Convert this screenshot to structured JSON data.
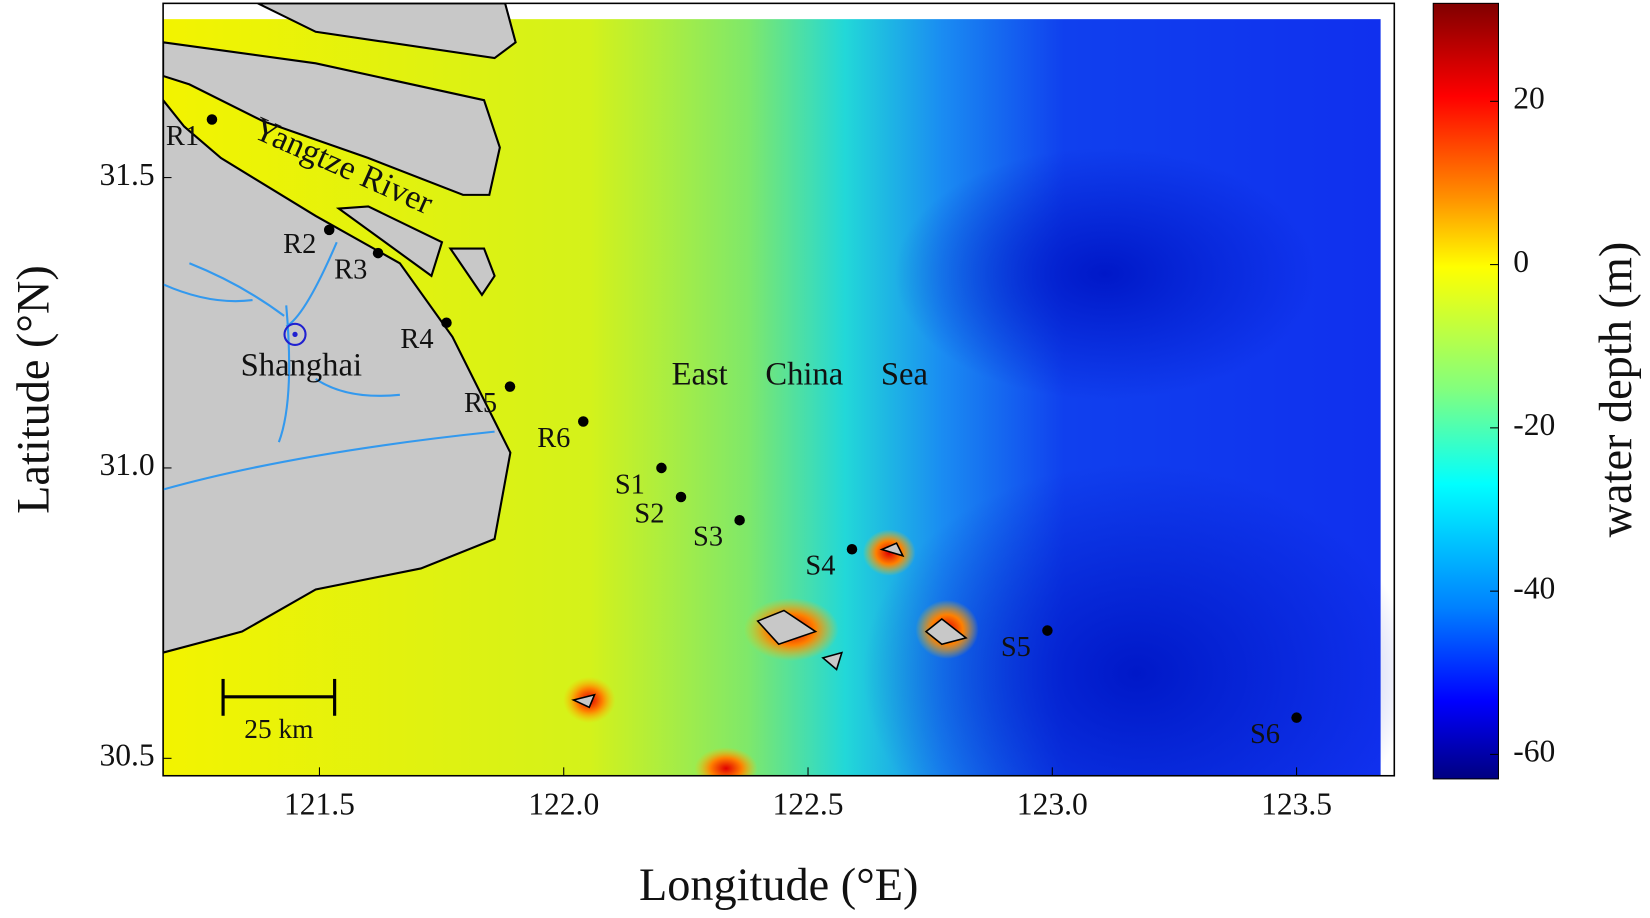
{
  "chart_data": {
    "type": "scatter",
    "xlabel": "Longitude (°E)",
    "ylabel": "Latitude (°N)",
    "xlim": [
      121.18,
      123.7
    ],
    "ylim": [
      30.47,
      31.8
    ],
    "xticks": [
      {
        "value": 121.5,
        "label": "121.5"
      },
      {
        "value": 122.0,
        "label": "122.0"
      },
      {
        "value": 122.5,
        "label": "122.5"
      },
      {
        "value": 123.0,
        "label": "123.0"
      },
      {
        "value": 123.5,
        "label": "123.5"
      }
    ],
    "yticks": [
      {
        "value": 30.5,
        "label": "30.5"
      },
      {
        "value": 31.0,
        "label": "31.0"
      },
      {
        "value": 31.5,
        "label": "31.5"
      }
    ],
    "color": "#000000",
    "points": [
      {
        "label": "R1",
        "x": 121.28,
        "y": 31.6
      },
      {
        "label": "R2",
        "x": 121.52,
        "y": 31.41
      },
      {
        "label": "R3",
        "x": 121.62,
        "y": 31.37
      },
      {
        "label": "R4",
        "x": 121.76,
        "y": 31.25
      },
      {
        "label": "R5",
        "x": 121.89,
        "y": 31.14
      },
      {
        "label": "R6",
        "x": 122.04,
        "y": 31.08
      },
      {
        "label": "S1",
        "x": 122.2,
        "y": 31.0
      },
      {
        "label": "S2",
        "x": 122.24,
        "y": 30.95
      },
      {
        "label": "S3",
        "x": 122.36,
        "y": 30.91
      },
      {
        "label": "S4",
        "x": 122.59,
        "y": 30.86
      },
      {
        "label": "S5",
        "x": 122.99,
        "y": 30.72
      },
      {
        "label": "S6",
        "x": 123.5,
        "y": 30.57
      }
    ],
    "city": {
      "label": "Shanghai",
      "x": 121.45,
      "y": 31.23
    },
    "annotations": {
      "river": "Yangtze River",
      "sea": "East China Sea",
      "scale_bar": "25 km"
    },
    "colorbar": {
      "label": "water depth (m)",
      "clim": [
        -63,
        32
      ],
      "ticks": [
        20,
        0,
        -20,
        -40,
        -60
      ]
    }
  }
}
